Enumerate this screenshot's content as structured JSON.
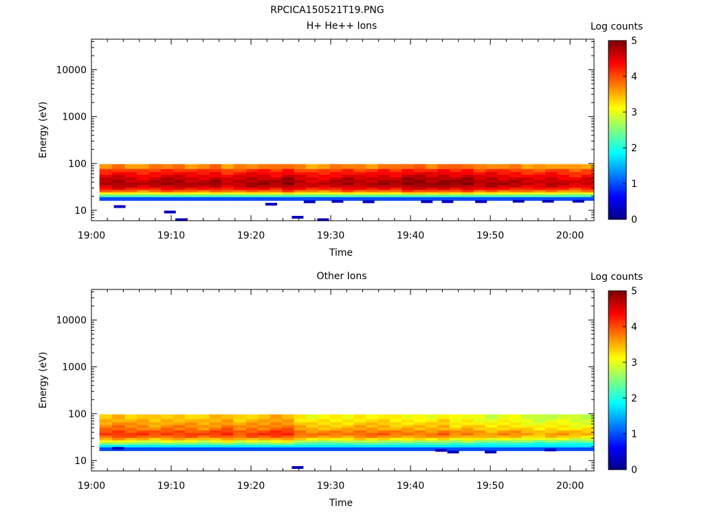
{
  "figure_title": "RPCICA150521T19.PNG",
  "colorbar_ticks": [
    "0",
    "1",
    "2",
    "3",
    "4",
    "5"
  ],
  "chart_data": [
    {
      "type": "heatmap",
      "title": "H+ He++ Ions",
      "xlabel": "Time",
      "ylabel": "Energy (eV)",
      "colorbar_label": "Log counts",
      "color_range": [
        0,
        5
      ],
      "y_scale": "log",
      "xlim": [
        "19:00",
        "20:03"
      ],
      "ylim": [
        6,
        45000
      ],
      "x_ticks": [
        "19:00",
        "19:10",
        "19:20",
        "19:30",
        "19:40",
        "19:50",
        "20:00"
      ],
      "y_ticks": [
        "10",
        "100",
        "1000",
        "10000"
      ],
      "time_bins_minutes": [
        1.0,
        2.6,
        4.2,
        5.7,
        7.2,
        8.7,
        10.2,
        11.7,
        13.3,
        14.8,
        16.3,
        17.8,
        19.4,
        20.9,
        22.4,
        23.9,
        25.4,
        26.9,
        28.4,
        29.9,
        31.4,
        32.9,
        34.4,
        35.9,
        37.4,
        38.9,
        40.4,
        41.9,
        43.4,
        44.9,
        46.4,
        47.9,
        49.4,
        50.9,
        52.4,
        53.9,
        55.4,
        56.9,
        58.4,
        59.9,
        61.4
      ],
      "energy_bins_eV": [
        18,
        21,
        23,
        26,
        29,
        33,
        37,
        42,
        48,
        55,
        62,
        71,
        85
      ],
      "base_log_counts": [
        1.0,
        2.3,
        3.0,
        3.7,
        4.2,
        4.5,
        4.65,
        4.6,
        4.5,
        4.35,
        4.2,
        4.0,
        3.6
      ],
      "time_mod_log_counts": [
        0.1,
        0.2,
        0.1,
        0.0,
        0.1,
        0.2,
        0.2,
        0.1,
        0.1,
        0.2,
        0.0,
        0.1,
        0.2,
        0.2,
        0.1,
        0.3,
        0.1,
        0.0,
        0.0,
        0.1,
        0.2,
        0.1,
        0.1,
        0.2,
        0.1,
        0.3,
        0.3,
        0.2,
        0.3,
        0.2,
        0.3,
        0.1,
        0.2,
        0.1,
        0.1,
        0.0,
        0.0,
        0.1,
        0.0,
        -0.1,
        0.0
      ],
      "sparse_low_counts": [
        {
          "t": 3.5,
          "e": 12.0
        },
        {
          "t": 9.8,
          "e": 9.2
        },
        {
          "t": 11.2,
          "e": 6.3
        },
        {
          "t": 22.5,
          "e": 13.5
        },
        {
          "t": 25.8,
          "e": 7.1
        },
        {
          "t": 29.0,
          "e": 6.3
        },
        {
          "t": 27.3,
          "e": 15.2
        },
        {
          "t": 30.8,
          "e": 15.5
        },
        {
          "t": 34.7,
          "e": 15.2
        },
        {
          "t": 42.0,
          "e": 15.3
        },
        {
          "t": 44.6,
          "e": 15.3
        },
        {
          "t": 48.8,
          "e": 15.3
        },
        {
          "t": 53.5,
          "e": 15.6
        },
        {
          "t": 57.2,
          "e": 15.6
        },
        {
          "t": 61.0,
          "e": 15.6
        }
      ]
    },
    {
      "type": "heatmap",
      "title": "Other Ions",
      "xlabel": "Time",
      "ylabel": "Energy (eV)",
      "colorbar_label": "Log counts",
      "color_range": [
        0,
        5
      ],
      "y_scale": "log",
      "xlim": [
        "19:00",
        "20:03"
      ],
      "ylim": [
        6,
        45000
      ],
      "x_ticks": [
        "19:00",
        "19:10",
        "19:20",
        "19:30",
        "19:40",
        "19:50",
        "20:00"
      ],
      "y_ticks": [
        "10",
        "100",
        "1000",
        "10000"
      ],
      "time_bins_minutes": [
        1.0,
        2.6,
        4.2,
        5.7,
        7.2,
        8.7,
        10.2,
        11.7,
        13.3,
        14.8,
        16.3,
        17.8,
        19.4,
        20.9,
        22.4,
        23.9,
        25.4,
        26.9,
        28.4,
        29.9,
        31.4,
        32.9,
        34.4,
        35.9,
        37.4,
        38.9,
        40.4,
        41.9,
        43.4,
        44.9,
        46.4,
        47.9,
        49.4,
        50.9,
        52.4,
        53.9,
        55.4,
        56.9,
        58.4,
        59.9,
        61.4
      ],
      "energy_bins_eV": [
        18,
        21,
        23,
        26,
        29,
        33,
        37,
        42,
        48,
        55,
        62,
        71,
        85
      ],
      "base_log_counts": [
        1.0,
        1.8,
        2.3,
        2.8,
        3.3,
        3.7,
        3.9,
        3.8,
        3.6,
        3.5,
        3.4,
        3.3,
        3.2
      ],
      "time_mod_log_counts": [
        0.2,
        0.3,
        0.2,
        0.2,
        0.1,
        0.2,
        0.2,
        0.2,
        0.1,
        0.2,
        0.3,
        0.1,
        0.2,
        0.2,
        0.3,
        0.3,
        0.0,
        -0.1,
        -0.1,
        -0.1,
        -0.1,
        0.0,
        0.0,
        0.0,
        -0.1,
        -0.1,
        -0.1,
        -0.1,
        0.0,
        -0.2,
        -0.1,
        -0.2,
        -0.3,
        -0.2,
        -0.2,
        -0.3,
        -0.4,
        -0.3,
        -0.3,
        -0.4,
        -0.4
      ],
      "sparse_low_counts": [
        {
          "t": 3.3,
          "e": 18.2
        },
        {
          "t": 25.8,
          "e": 7.1
        },
        {
          "t": 43.8,
          "e": 16.5
        },
        {
          "t": 45.3,
          "e": 15.2
        },
        {
          "t": 50.0,
          "e": 15.2
        },
        {
          "t": 57.5,
          "e": 16.8
        }
      ]
    }
  ]
}
